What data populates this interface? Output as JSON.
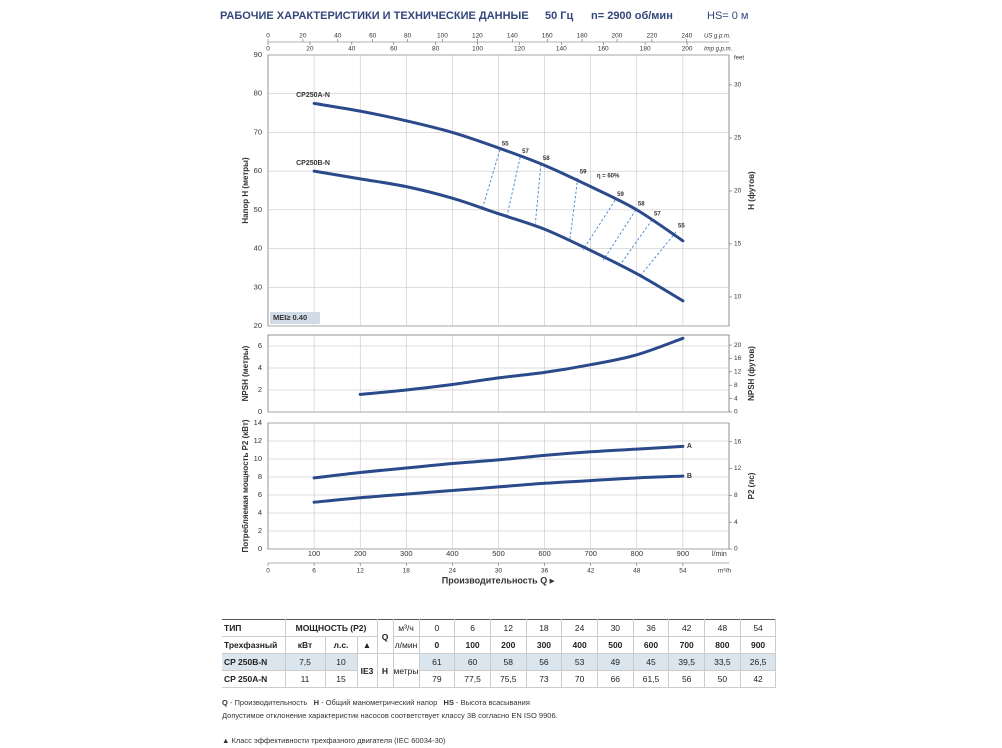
{
  "header": {
    "title": "РАБОЧИЕ ХАРАКТЕРИСТИКИ И ТЕХНИЧЕСКИЕ ДАННЫЕ",
    "frequency": "50 Гц",
    "speed": "n= 2900 об/мин",
    "suction": "HS= 0 м"
  },
  "flow_axes": {
    "title": "Производительность Q ▸",
    "us_gpm": {
      "label": "US g.p.m.",
      "xlim": [
        0,
        264.2
      ],
      "ticks": [
        0,
        20,
        40,
        60,
        80,
        100,
        120,
        140,
        160,
        180,
        200,
        220,
        240
      ]
    },
    "imp_gpm": {
      "label": "Imp g.p.m.",
      "xlim": [
        0,
        220
      ],
      "ticks": [
        0,
        20,
        40,
        60,
        80,
        100,
        120,
        140,
        160,
        180,
        200
      ]
    },
    "lmin": {
      "label": "l/min",
      "xlim": [
        0,
        1000
      ],
      "ticks": [
        100,
        200,
        300,
        400,
        500,
        600,
        700,
        800,
        900
      ]
    },
    "m3h": {
      "label": "m³/h",
      "xlim": [
        0,
        60
      ],
      "ticks": [
        0,
        6,
        12,
        18,
        24,
        30,
        36,
        42,
        48,
        54
      ]
    }
  },
  "chart_data": [
    {
      "type": "line",
      "ylabel": "Напор H (метры)",
      "y2label": "H (футов)",
      "y2unit": "feet",
      "annotation": "MEI≥ 0.40",
      "xlim": [
        0,
        1000
      ],
      "ylim": [
        20,
        90
      ],
      "yticks": [
        20,
        30,
        40,
        50,
        60,
        70,
        80,
        90
      ],
      "y2lim": [
        7.26,
        32.83
      ],
      "y2ticks": [
        10,
        15,
        20,
        25,
        30
      ],
      "grid": true,
      "x": [
        100,
        200,
        300,
        400,
        500,
        600,
        700,
        800,
        900
      ],
      "series": [
        {
          "name": "CP250A-N",
          "color": "#2b4a8b",
          "values": [
            77.5,
            75.5,
            73,
            70,
            66,
            61.5,
            56,
            50,
            42
          ]
        },
        {
          "name": "CP250B-N",
          "color": "#2b4a8b",
          "values": [
            60,
            58,
            56,
            53,
            49,
            45,
            39.5,
            33.5,
            26.5
          ]
        }
      ],
      "efficiency": [
        {
          "label": "55",
          "x": [
            503,
            466
          ],
          "y": [
            65.5,
            50.7
          ]
        },
        {
          "label": "57",
          "x": [
            547,
            518
          ],
          "y": [
            63.6,
            48.2
          ]
        },
        {
          "label": "58",
          "x": [
            592,
            580
          ],
          "y": [
            61.8,
            46.5
          ]
        },
        {
          "label": "59",
          "x": [
            672,
            655
          ],
          "y": [
            58.2,
            42.5
          ]
        },
        {
          "label": "η = 60%",
          "x": [
            709
          ],
          "y": [
            57.2
          ]
        },
        {
          "label": "59",
          "x": [
            753,
            683
          ],
          "y": [
            52.5,
            39.6
          ]
        },
        {
          "label": "58",
          "x": [
            798,
            727
          ],
          "y": [
            50,
            37
          ]
        },
        {
          "label": "57",
          "x": [
            833,
            759
          ],
          "y": [
            47.4,
            35
          ]
        },
        {
          "label": "55",
          "x": [
            885,
            807
          ],
          "y": [
            44.3,
            32.9
          ]
        }
      ]
    },
    {
      "type": "line",
      "ylabel": "NPSH (метры)",
      "y2label": "NPSH (футов)",
      "xlim": [
        0,
        1000
      ],
      "ylim": [
        0,
        7
      ],
      "yticks": [
        0,
        2,
        4,
        6
      ],
      "y2lim": [
        0,
        23
      ],
      "y2ticks": [
        0,
        4,
        8,
        12,
        16,
        20
      ],
      "grid": true,
      "x": [
        200,
        300,
        400,
        500,
        600,
        700,
        800,
        900
      ],
      "series": [
        {
          "color": "#2b4a8b",
          "values": [
            1.6,
            2.0,
            2.5,
            3.1,
            3.6,
            4.3,
            5.2,
            6.7
          ]
        }
      ]
    },
    {
      "type": "line",
      "ylabel": "Потребляемая мощность P2 (кВт)",
      "y2label": "P2 (лс)",
      "xlim": [
        0,
        1000
      ],
      "ylim": [
        0,
        14
      ],
      "yticks": [
        0,
        2,
        4,
        6,
        8,
        10,
        12,
        14
      ],
      "y2lim": [
        0,
        18.77
      ],
      "y2ticks": [
        0,
        4,
        8,
        12,
        16
      ],
      "grid": true,
      "x": [
        100,
        200,
        300,
        400,
        500,
        600,
        700,
        800,
        900
      ],
      "series": [
        {
          "name": "A",
          "color": "#2b4a8b",
          "values": [
            7.9,
            8.5,
            9.0,
            9.5,
            9.9,
            10.4,
            10.8,
            11.1,
            11.4
          ]
        },
        {
          "name": "B",
          "color": "#2b4a8b",
          "values": [
            5.2,
            5.7,
            6.1,
            6.5,
            6.9,
            7.3,
            7.6,
            7.9,
            8.1
          ]
        }
      ]
    }
  ],
  "table": {
    "head": {
      "type": "ТИП",
      "power": "МОЩНОСТЬ (P2)",
      "q": "Q",
      "q_unit_m3h": "м³/ч",
      "q_m3h": [
        0,
        6,
        12,
        18,
        24,
        30,
        36,
        42,
        48,
        54
      ],
      "phase": "Трехфазный",
      "kw": "кВт",
      "hp": "л.с.",
      "ie_mark": "▲",
      "q_unit_lmin": "л/мин",
      "q_lmin": [
        0,
        100,
        200,
        300,
        400,
        500,
        600,
        700,
        800,
        900
      ],
      "ie": "IE3",
      "h": "H",
      "h_unit": "метры"
    },
    "rows": [
      {
        "model": "CP 250B-N",
        "kw": "7,5",
        "hp": 10,
        "h": [
          61,
          60,
          58,
          56,
          53,
          49,
          45,
          "39,5",
          "33,5",
          "26,5"
        ]
      },
      {
        "model": "CP 250A-N",
        "kw": 11,
        "hp": 15,
        "h": [
          79,
          "77,5",
          "75,5",
          73,
          70,
          66,
          "61,5",
          56,
          50,
          42
        ]
      }
    ]
  },
  "notes": {
    "legend": [
      {
        "key": "Q",
        "text": "- Производительность"
      },
      {
        "key": "H",
        "text": "- Общий манометрический напор"
      },
      {
        "key": "HS",
        "text": "- Высота всасывания"
      }
    ],
    "tolerance": "Допустимое отклонение характеристик насосов соответствует классу 3B согласно EN ISO 9906.",
    "ie_class": "▲  Класс эффективности трехфазного двигателя (IEC 60034-30)"
  }
}
